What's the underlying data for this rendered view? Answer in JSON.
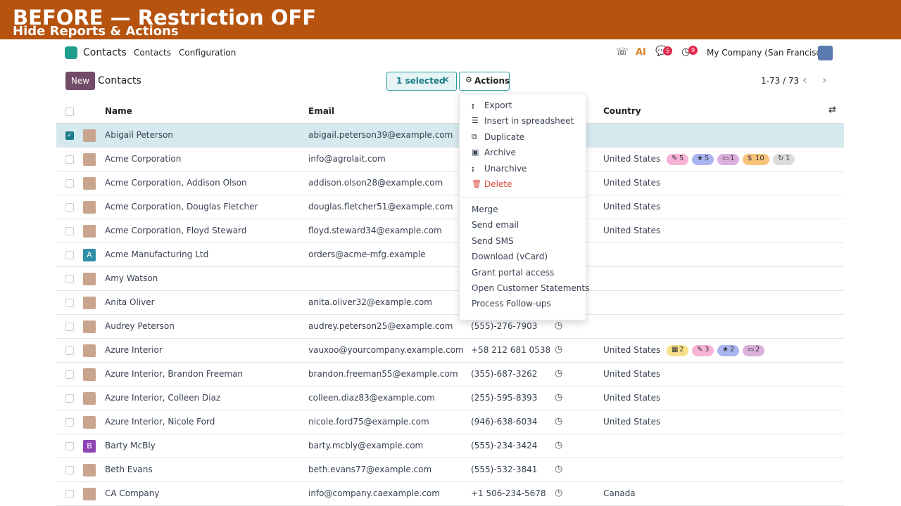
{
  "banner": {
    "title": "BEFORE — Restriction OFF",
    "subtitle": "Hide Reports & Actions"
  },
  "navbar": {
    "app": "Contacts",
    "menu": [
      "Contacts",
      "Configuration"
    ],
    "chat_badge": "5",
    "activity_badge": "9",
    "company": "My Company (San Francisco)"
  },
  "control": {
    "new": "New",
    "breadcrumb": "Contacts",
    "selected": "1 selected",
    "actions": "Actions",
    "pager": "1-73 / 73"
  },
  "table": {
    "headers": {
      "name": "Name",
      "email": "Email",
      "country": "Country"
    },
    "rows": [
      {
        "name": "Abigail Peterson",
        "email": "abigail.peterson39@example.com",
        "selected": true
      },
      {
        "name": "Acme Corporation",
        "email": "info@agrolait.com",
        "country": "United States",
        "tags": [
          {
            "icon": "✎",
            "count": "5",
            "color": "#f6b3d6"
          },
          {
            "icon": "★",
            "count": "5",
            "color": "#aab4f0"
          },
          {
            "icon": "▭",
            "count": "1",
            "color": "#dcb0dc"
          },
          {
            "icon": "$",
            "count": "10",
            "color": "#f7c27a"
          },
          {
            "icon": "↻",
            "count": "1",
            "color": "#dcdcdc"
          }
        ]
      },
      {
        "name": "Acme Corporation, Addison Olson",
        "email": "addison.olson28@example.com",
        "country": "United States"
      },
      {
        "name": "Acme Corporation, Douglas Fletcher",
        "email": "douglas.fletcher51@example.com",
        "country": "United States"
      },
      {
        "name": "Acme Corporation, Floyd Steward",
        "email": "floyd.steward34@example.com",
        "country": "United States"
      },
      {
        "name": "Acme Manufacturing Ltd",
        "email": "orders@acme-mfg.example",
        "avatar": "A",
        "avatar_color": "#2f8fa8"
      },
      {
        "name": "Amy Watson"
      },
      {
        "name": "Anita Oliver",
        "email": "anita.oliver32@example.com"
      },
      {
        "name": "Audrey Peterson",
        "email": "audrey.peterson25@example.com",
        "phone": "(555)-276-7903"
      },
      {
        "name": "Azure Interior",
        "email": "vauxoo@yourcompany.example.com",
        "phone": "+58 212 681 0538",
        "country": "United States",
        "tags": [
          {
            "icon": "▦",
            "count": "2",
            "color": "#f8e08a"
          },
          {
            "icon": "✎",
            "count": "3",
            "color": "#f6b3d6"
          },
          {
            "icon": "★",
            "count": "2",
            "color": "#aab4f0"
          },
          {
            "icon": "▭",
            "count": "2",
            "color": "#dcb0dc"
          }
        ]
      },
      {
        "name": "Azure Interior, Brandon Freeman",
        "email": "brandon.freeman55@example.com",
        "phone": "(355)-687-3262",
        "country": "United States"
      },
      {
        "name": "Azure Interior, Colleen Diaz",
        "email": "colleen.diaz83@example.com",
        "phone": "(255)-595-8393",
        "country": "United States"
      },
      {
        "name": "Azure Interior, Nicole Ford",
        "email": "nicole.ford75@example.com",
        "phone": "(946)-638-6034",
        "country": "United States"
      },
      {
        "name": "Barty McBly",
        "email": "barty.mcbly@example.com",
        "phone": "(555)-234-3424",
        "avatar": "B",
        "avatar_color": "#8f44b5"
      },
      {
        "name": "Beth Evans",
        "email": "beth.evans77@example.com",
        "phone": "(555)-532-3841"
      },
      {
        "name": "CA Company",
        "email": "info@company.caexample.com",
        "phone": "+1 506-234-5678",
        "country": "Canada"
      }
    ]
  },
  "dropdown": {
    "primary": [
      {
        "icon": "⭱",
        "label": "Export"
      },
      {
        "icon": "☰",
        "label": "Insert in spreadsheet"
      },
      {
        "icon": "⧉",
        "label": "Duplicate"
      },
      {
        "icon": "▣",
        "label": "Archive"
      },
      {
        "icon": "⭱",
        "label": "Unarchive"
      },
      {
        "icon": "🗑",
        "label": "Delete",
        "danger": true
      }
    ],
    "secondary": [
      "Merge",
      "Send email",
      "Send SMS",
      "Download (vCard)",
      "Grant portal access",
      "Open Customer Statements",
      "Process Follow-ups"
    ]
  }
}
